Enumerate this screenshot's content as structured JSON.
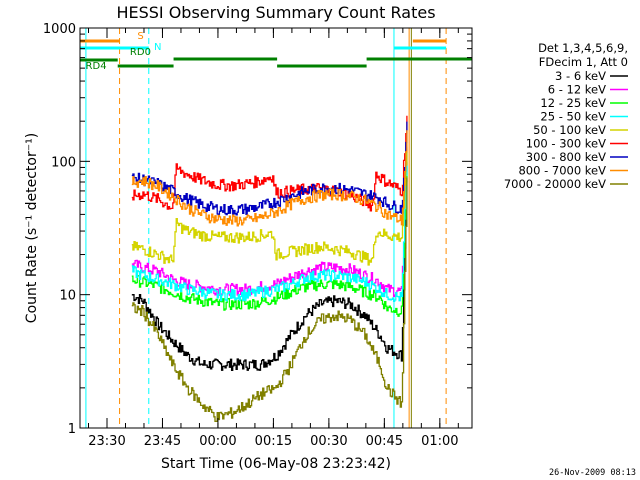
{
  "chart_data": {
    "type": "line",
    "title": "HESSI Observing Summary Count Rates",
    "xlabel": "Start Time (06-May-08 23:23:42)",
    "ylabel": "Count Rate (s⁻¹ detector⁻¹)",
    "ylim": [
      1,
      1000
    ],
    "y_scale": "log",
    "y_ticks": [
      1,
      10,
      100,
      1000
    ],
    "xlim_minutes": [
      -1,
      105
    ],
    "x_ticks": [
      {
        "label": "23:30",
        "t": 6.3
      },
      {
        "label": "23:45",
        "t": 21.3
      },
      {
        "label": "00:00",
        "t": 36.3
      },
      {
        "label": "00:15",
        "t": 51.3
      },
      {
        "label": "00:30",
        "t": 66.3
      },
      {
        "label": "00:45",
        "t": 81.3
      },
      {
        "label": "01:00",
        "t": 96.3
      }
    ],
    "legend": {
      "header": [
        "Det 1,3,4,5,6,9,",
        "FDecim 1, Att 0"
      ],
      "placement": "right"
    },
    "series": [
      {
        "name": "3 - 6 keV",
        "color": "#000000",
        "x": [
          13,
          16,
          20,
          24,
          28,
          32,
          36,
          40,
          44,
          48,
          52,
          56,
          60,
          64,
          68,
          72,
          76,
          80,
          82,
          86,
          87.5
        ],
        "y": [
          10,
          9,
          6,
          4.5,
          3.5,
          3,
          3,
          3,
          3,
          3,
          3.5,
          5,
          7,
          8.5,
          9,
          8.5,
          7,
          5,
          4,
          3.5,
          120
        ]
      },
      {
        "name": "6 - 12 keV",
        "color": "#ff00ff",
        "x": [
          13,
          16,
          20,
          24,
          28,
          32,
          36,
          40,
          44,
          48,
          52,
          56,
          60,
          64,
          68,
          72,
          76,
          80,
          82,
          86,
          87.5
        ],
        "y": [
          17,
          16,
          15,
          13,
          12,
          11.5,
          11,
          11,
          11,
          11.5,
          12,
          13.5,
          15,
          16,
          16,
          15.5,
          14,
          12.5,
          11,
          10.5,
          160
        ]
      },
      {
        "name": "12 - 25 keV",
        "color": "#00ff00",
        "x": [
          13,
          16,
          20,
          24,
          28,
          32,
          36,
          40,
          44,
          48,
          52,
          56,
          60,
          64,
          68,
          72,
          76,
          80,
          82,
          86,
          87.5
        ],
        "y": [
          13,
          12.5,
          11.5,
          10.5,
          9.5,
          9,
          8.5,
          8.5,
          8.5,
          8.8,
          9.5,
          10.5,
          11.5,
          12,
          12,
          11.5,
          10.5,
          9.5,
          8,
          7.5,
          150
        ]
      },
      {
        "name": "25 - 50 keV",
        "color": "#00ffff",
        "x": [
          13,
          16,
          20,
          24,
          28,
          32,
          36,
          40,
          44,
          48,
          52,
          56,
          60,
          64,
          68,
          72,
          76,
          80,
          82,
          86,
          87.5
        ],
        "y": [
          15,
          14,
          13,
          12,
          11,
          10.5,
          10,
          10,
          10,
          10.5,
          11,
          12,
          13.5,
          14,
          14,
          13.5,
          12.5,
          11,
          10,
          9.5,
          150
        ]
      },
      {
        "name": "50 - 100 keV",
        "color": "#d4d400",
        "x": [
          13,
          16,
          20,
          24,
          25,
          28,
          32,
          36,
          40,
          44,
          48,
          51,
          52,
          56,
          60,
          64,
          68,
          72,
          76,
          78,
          79,
          82,
          86,
          87.5
        ],
        "y": [
          23,
          22,
          20,
          18,
          34,
          30,
          28,
          27,
          27,
          27,
          28,
          29,
          20,
          21,
          22,
          23,
          22,
          21,
          19,
          18,
          30,
          28,
          27,
          130
        ]
      },
      {
        "name": "100 - 300 keV",
        "color": "#ff0000",
        "x": [
          13,
          16,
          20,
          24,
          25,
          28,
          32,
          36,
          40,
          44,
          48,
          51,
          52,
          56,
          60,
          64,
          68,
          72,
          76,
          78,
          79,
          82,
          86,
          87.5
        ],
        "y": [
          55,
          57,
          52,
          45,
          88,
          80,
          72,
          67,
          66,
          68,
          72,
          78,
          58,
          60,
          62,
          63,
          60,
          56,
          50,
          46,
          80,
          70,
          60,
          240
        ]
      },
      {
        "name": "300 - 800 keV",
        "color": "#0000c0",
        "x": [
          13,
          16,
          20,
          24,
          28,
          32,
          36,
          40,
          44,
          48,
          52,
          56,
          60,
          64,
          68,
          72,
          76,
          80,
          82,
          86,
          87.5
        ],
        "y": [
          75,
          73,
          68,
          60,
          52,
          47,
          44,
          43,
          44,
          46,
          50,
          55,
          60,
          63,
          63,
          61,
          57,
          53,
          48,
          44,
          200
        ]
      },
      {
        "name": "800 - 7000 keV",
        "color": "#ff8c00",
        "x": [
          13,
          16,
          20,
          24,
          28,
          32,
          36,
          40,
          44,
          48,
          52,
          56,
          60,
          64,
          68,
          72,
          76,
          80,
          82,
          86,
          87.5
        ],
        "y": [
          70,
          72,
          65,
          55,
          45,
          40,
          37,
          36,
          36,
          38,
          42,
          48,
          53,
          56,
          57,
          55,
          51,
          45,
          40,
          36,
          180
        ]
      },
      {
        "name": "7000 - 20000 keV",
        "color": "#808000",
        "x": [
          13,
          16,
          20,
          24,
          28,
          32,
          36,
          40,
          44,
          48,
          52,
          56,
          60,
          64,
          68,
          72,
          76,
          80,
          82,
          86,
          87.5
        ],
        "y": [
          8,
          7.5,
          5,
          3,
          2,
          1.5,
          1.2,
          1.3,
          1.5,
          1.8,
          2,
          3,
          5,
          6.5,
          7,
          6.5,
          5,
          3,
          2,
          1.5,
          100
        ]
      }
    ],
    "vertical_markers": [
      {
        "t": 0.6,
        "color": "#00ffff",
        "style": "solid"
      },
      {
        "t": 9.7,
        "color": "#ff8c00",
        "style": "dashed"
      },
      {
        "t": 17.6,
        "color": "#00ffff",
        "style": "dashed"
      },
      {
        "t": 83.9,
        "color": "#00ffff",
        "style": "solid"
      },
      {
        "t": 88.0,
        "color": "#ff8c00",
        "style": "solid"
      },
      {
        "t": 88.6,
        "color": "#808000",
        "style": "solid"
      },
      {
        "t": 98.0,
        "color": "#ff8c00",
        "style": "dashed"
      }
    ],
    "flag_bars": [
      {
        "name": "S",
        "color": "#ff8c00",
        "segments": [
          [
            -1,
            9.7
          ],
          [
            89.0,
            98.0
          ]
        ]
      },
      {
        "name": "N",
        "color": "#00ffff",
        "segments": [
          [
            -1,
            17.6
          ],
          [
            83.9,
            98.0
          ]
        ]
      },
      {
        "name": "RD0",
        "color": "#008000",
        "segments": [
          [
            -1,
            9.2
          ]
        ]
      },
      {
        "name": "RD4",
        "color": "#008000",
        "segments": [
          [
            9.2,
            24.3
          ],
          [
            52.3,
            76.5
          ]
        ]
      }
    ],
    "flag_bars_high": [
      {
        "color": "#008000",
        "segments": [
          [
            24.3,
            52.3
          ],
          [
            76.5,
            105
          ]
        ]
      }
    ],
    "timestamp": "26-Nov-2009 08:13"
  }
}
